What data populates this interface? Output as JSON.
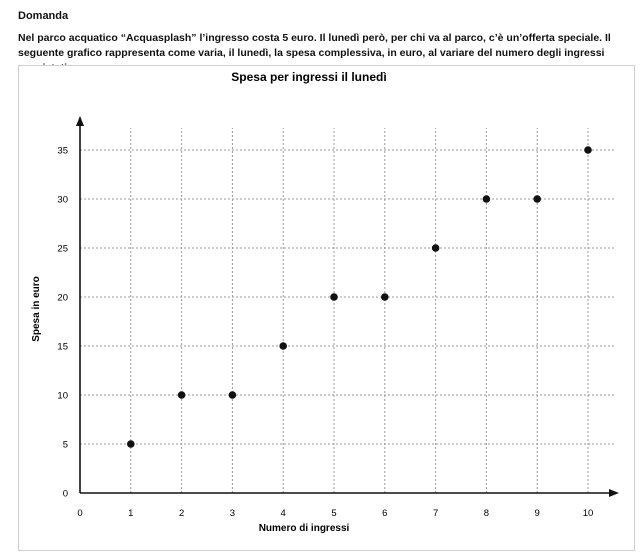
{
  "heading": "Domanda",
  "question": "Nel parco acquatico “Acquasplash” l’ingresso costa 5 euro. Il lunedì però, per chi va al parco, c’è un’offerta speciale. Il seguente grafico rappresenta come varia, il lunedì, la spesa complessiva, in euro, al variare del numero degli ingressi acquistati.",
  "chart_data": {
    "type": "scatter",
    "title": "Spesa per ingressi il lunedì",
    "xlabel": "Numero di ingressi",
    "ylabel": "Spesa in euro",
    "xlim": [
      0,
      10
    ],
    "ylim": [
      0,
      35
    ],
    "xticks": [
      0,
      1,
      2,
      3,
      4,
      5,
      6,
      7,
      8,
      9,
      10
    ],
    "yticks": [
      0,
      5,
      10,
      15,
      20,
      25,
      30,
      35
    ],
    "grid": true,
    "x": [
      1,
      2,
      3,
      4,
      5,
      6,
      7,
      8,
      9,
      10
    ],
    "y": [
      5,
      10,
      10,
      15,
      20,
      20,
      25,
      30,
      30,
      35
    ],
    "point_color": "#111111",
    "grid_color": "#9a9a9a"
  }
}
